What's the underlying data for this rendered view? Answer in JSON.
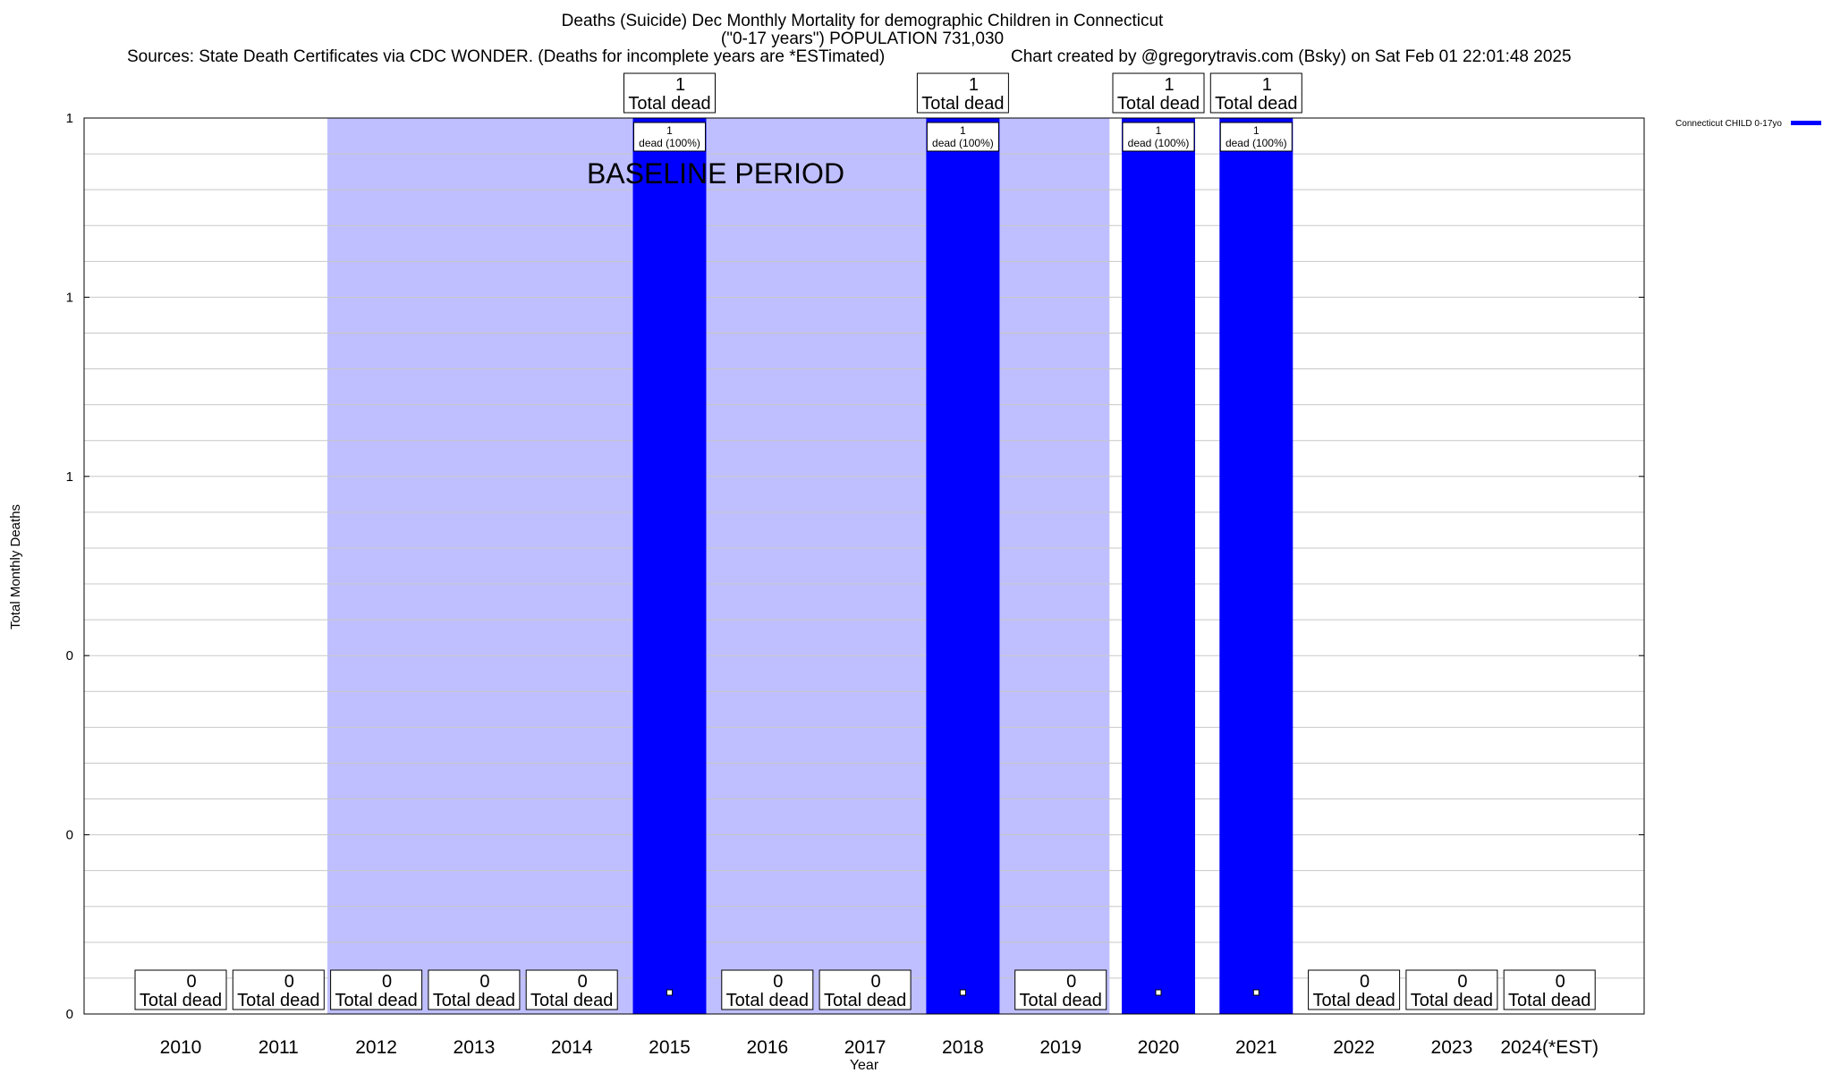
{
  "chart_data": {
    "type": "bar",
    "title": "Deaths (Suicide) Dec Monthly Mortality for demographic Children in Connecticut",
    "subtitle": "(\"0-17 years\") POPULATION 731,030",
    "sources": "Sources: State Death Certificates via CDC WONDER. (Deaths for incomplete years are *ESTimated)",
    "credit": "Chart created by @gregorytravis.com (Bsky) on Sat Feb 01 22:01:48 2025",
    "xlabel": "Year",
    "ylabel": "Total Monthly Deaths",
    "categories": [
      "2010",
      "2011",
      "2012",
      "2013",
      "2014",
      "2015",
      "2016",
      "2017",
      "2018",
      "2019",
      "2020",
      "2021",
      "2022",
      "2023",
      "2024(*EST)"
    ],
    "series": [
      {
        "name": "Connecticut CHILD 0-17yo",
        "color": "#0000ff",
        "values": [
          0,
          0,
          0,
          0,
          0,
          1,
          0,
          0,
          1,
          0,
          1,
          1,
          0,
          0,
          0
        ]
      }
    ],
    "total_labels": {
      "line1": [
        "0",
        "0",
        "0",
        "0",
        "0",
        "1",
        "0",
        "0",
        "1",
        "0",
        "1",
        "1",
        "0",
        "0",
        "0"
      ],
      "line2": "Total dead"
    },
    "bar_labels": {
      "line1": "1",
      "line2": "dead (100%)"
    },
    "ylim": [
      0,
      1
    ],
    "yticks": {
      "values": [
        0,
        0.2,
        0.4,
        0.6,
        0.8,
        1.0
      ],
      "labels": [
        "0",
        "0",
        "0",
        "1",
        "1",
        "1"
      ]
    },
    "baseline_period": {
      "label": "BASELINE PERIOD",
      "start_category": "2012",
      "end_category": "2019",
      "color": "#bfbfff"
    },
    "legend_placement": "top-right",
    "grid": true
  }
}
